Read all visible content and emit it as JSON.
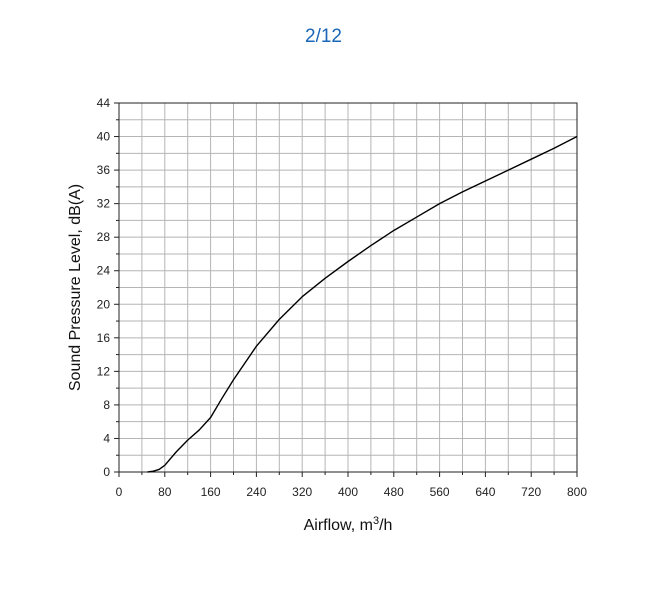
{
  "pager": {
    "label": "2/12"
  },
  "colors": {
    "pager": "#1a66b8",
    "grid": "#b5b5b5",
    "axis": "#222222",
    "line": "#000000"
  },
  "chart_data": {
    "type": "line",
    "title": "",
    "xlabel": "Airflow, m³/h",
    "ylabel": "Sound Pressure Level, dB(A)",
    "xlim": [
      0,
      800
    ],
    "ylim": [
      0,
      44
    ],
    "x_ticks": [
      0,
      80,
      160,
      240,
      320,
      400,
      480,
      560,
      640,
      720,
      800
    ],
    "y_ticks": [
      0,
      4,
      8,
      12,
      16,
      20,
      24,
      28,
      32,
      36,
      40,
      44
    ],
    "grid": true,
    "series": [
      {
        "x": [
          50,
          60,
          70,
          80,
          90,
          100,
          120,
          140,
          160,
          180,
          200,
          240,
          280,
          320,
          360,
          400,
          440,
          480,
          520,
          560,
          600,
          640,
          680,
          720,
          760,
          800
        ],
        "y": [
          0,
          0.1,
          0.3,
          0.8,
          1.6,
          2.4,
          3.8,
          5.0,
          6.5,
          8.8,
          11.0,
          15.0,
          18.2,
          20.9,
          23.1,
          25.1,
          27.0,
          28.8,
          30.4,
          32.0,
          33.4,
          34.7,
          36.0,
          37.3,
          38.6,
          40.0
        ]
      }
    ]
  }
}
